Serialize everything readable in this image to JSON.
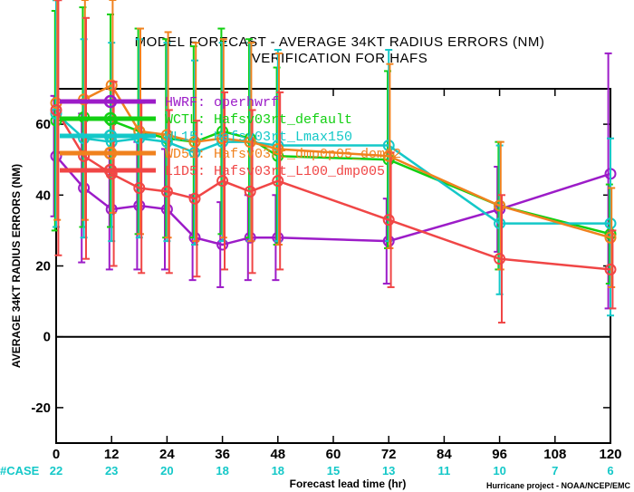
{
  "chart_data": {
    "type": "line",
    "title": "MODEL FORECAST - AVERAGE 34KT RADIUS ERRORS (NM)",
    "subtitle": "VERIFICATION FOR HAFS",
    "xlabel": "Forecast lead time (hr)",
    "ylabel": "AVERAGE 34KT RADIUS ERRORS (NM)",
    "credit": "Hurricane project - NOAA/NCEP/EMC",
    "xlim": [
      0,
      120
    ],
    "ylim": [
      -30,
      70
    ],
    "xticks": [
      0,
      12,
      24,
      36,
      48,
      60,
      72,
      84,
      96,
      108,
      120
    ],
    "yticks": [
      -20,
      0,
      20,
      40,
      60
    ],
    "zero_line": true,
    "grid": false,
    "legend_position": "top-left",
    "case_label": "#CASE",
    "cases": {
      "x": [
        0,
        12,
        24,
        36,
        48,
        60,
        72,
        84,
        96,
        108,
        120
      ],
      "values": [
        "22",
        "23",
        "20",
        "18",
        "18",
        "15",
        "13",
        "11",
        "10",
        "7",
        "6"
      ]
    },
    "series": [
      {
        "name": "HWRF: operhwrf",
        "color": "#9c1cc8",
        "x": [
          0,
          6,
          12,
          18,
          24,
          30,
          36,
          42,
          48,
          72,
          96,
          120
        ],
        "y": [
          51,
          42,
          36,
          37,
          36,
          28,
          26,
          28,
          28,
          27,
          36,
          46
        ],
        "lo": [
          34,
          21,
          19,
          19,
          19,
          16,
          14,
          16,
          16,
          15,
          24,
          8
        ],
        "hi": [
          68,
          63,
          53,
          55,
          53,
          40,
          38,
          40,
          40,
          39,
          48,
          80
        ]
      },
      {
        "name": "WCTL: Hafsv03rt_default",
        "color": "#12d012",
        "x": [
          0,
          6,
          12,
          18,
          24,
          30,
          36,
          42,
          48,
          72,
          96,
          120
        ],
        "y": [
          61,
          62,
          61,
          58,
          56,
          55,
          58,
          56,
          51,
          50,
          37,
          29
        ],
        "lo": [
          30,
          31,
          31,
          29,
          28,
          28,
          29,
          28,
          26,
          25,
          19,
          15
        ],
        "hi": [
          92,
          93,
          91,
          87,
          84,
          82,
          87,
          84,
          76,
          75,
          55,
          43
        ]
      },
      {
        "name": "WL15: Hafsv03rt_Lmax150",
        "color": "#14c8c8",
        "x": [
          0,
          6,
          12,
          18,
          24,
          30,
          36,
          42,
          48,
          72,
          96,
          120
        ],
        "y": [
          63,
          56,
          55,
          56,
          55,
          52,
          55,
          55,
          54,
          54,
          32,
          32
        ],
        "lo": [
          31,
          28,
          27,
          28,
          27,
          26,
          27,
          27,
          27,
          27,
          12,
          6
        ],
        "hi": [
          95,
          84,
          83,
          84,
          83,
          78,
          83,
          83,
          81,
          81,
          54,
          56
        ]
      },
      {
        "name": "WD51: Hafsv03rt_dmp0p05_dom02",
        "color": "#f0821e",
        "x": [
          0,
          6,
          12,
          18,
          24,
          30,
          36,
          42,
          48,
          72,
          96,
          120
        ],
        "y": [
          66,
          67,
          71,
          58,
          57,
          55,
          56,
          55,
          53,
          51,
          37,
          28
        ],
        "lo": [
          33,
          33,
          35,
          29,
          28,
          27,
          28,
          27,
          26,
          25,
          19,
          14
        ],
        "hi": [
          99,
          101,
          107,
          87,
          86,
          83,
          84,
          83,
          80,
          77,
          55,
          42
        ]
      },
      {
        "name": "L1D5: Hafsv03rt_L100_dmp005",
        "color": "#f04646",
        "x": [
          0,
          6,
          12,
          18,
          24,
          30,
          36,
          42,
          48,
          72,
          96,
          120
        ],
        "y": [
          64,
          51,
          46,
          42,
          41,
          39,
          44,
          41,
          44,
          33,
          22,
          19
        ],
        "lo": [
          23,
          22,
          20,
          18,
          18,
          17,
          19,
          18,
          19,
          14,
          4,
          8
        ],
        "hi": [
          95,
          90,
          72,
          66,
          64,
          61,
          69,
          64,
          69,
          52,
          40,
          30
        ]
      }
    ]
  }
}
